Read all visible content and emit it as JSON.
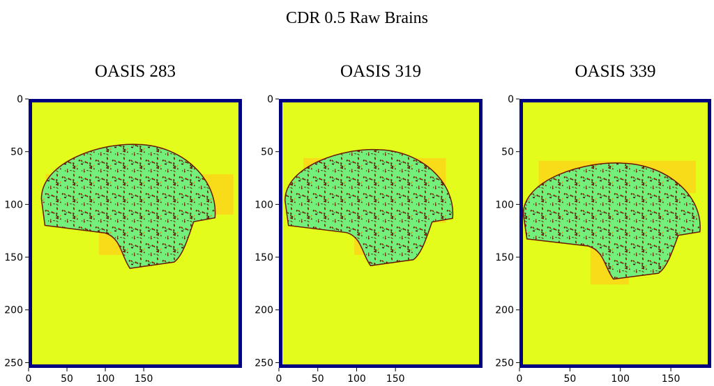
{
  "title": "CDR 0.5 Raw Brains",
  "chart_data": [
    {
      "type": "image",
      "title": "OASIS 283",
      "xlim": [
        0,
        278
      ],
      "ylim": [
        255,
        0
      ],
      "xticks": [
        0,
        50,
        100,
        150
      ],
      "yticks": [
        0,
        50,
        100,
        150,
        200,
        250
      ]
    },
    {
      "type": "image",
      "title": "OASIS 319",
      "xlim": [
        0,
        262
      ],
      "ylim": [
        255,
        0
      ],
      "xticks": [
        0,
        50,
        100,
        150
      ],
      "yticks": [
        0,
        50,
        100,
        150,
        200,
        250
      ]
    },
    {
      "type": "image",
      "title": "OASIS 339",
      "xlim": [
        0,
        190
      ],
      "ylim": [
        255,
        0
      ],
      "xticks": [
        0,
        50,
        100,
        150
      ],
      "yticks": [
        0,
        50,
        100,
        150,
        200,
        250
      ]
    }
  ]
}
